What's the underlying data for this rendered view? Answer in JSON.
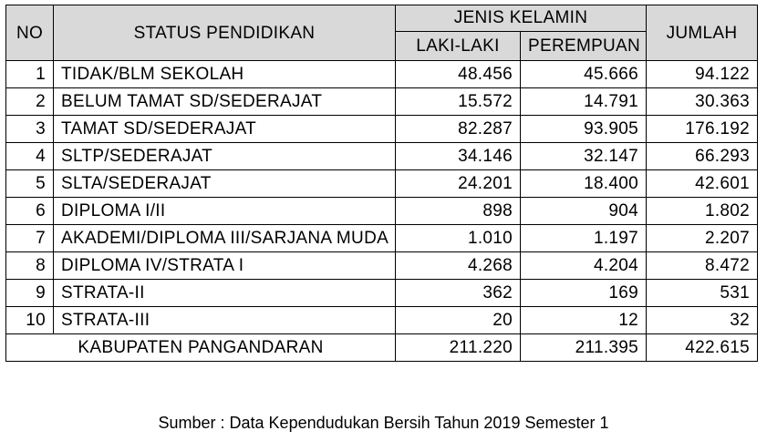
{
  "table": {
    "headers": {
      "no": "NO",
      "status": "STATUS PENDIDIKAN",
      "gender_group": "JENIS KELAMIN",
      "male": "LAKI-LAKI",
      "female": "PEREMPUAN",
      "total": "JUMLAH"
    },
    "rows": [
      {
        "no": "1",
        "status": "TIDAK/BLM SEKOLAH",
        "male": "48.456",
        "female": "45.666",
        "total": "94.122"
      },
      {
        "no": "2",
        "status": "BELUM TAMAT SD/SEDERAJAT",
        "male": "15.572",
        "female": "14.791",
        "total": "30.363"
      },
      {
        "no": "3",
        "status": "TAMAT SD/SEDERAJAT",
        "male": "82.287",
        "female": "93.905",
        "total": "176.192"
      },
      {
        "no": "4",
        "status": "SLTP/SEDERAJAT",
        "male": "34.146",
        "female": "32.147",
        "total": "66.293"
      },
      {
        "no": "5",
        "status": "SLTA/SEDERAJAT",
        "male": "24.201",
        "female": "18.400",
        "total": "42.601"
      },
      {
        "no": "6",
        "status": "DIPLOMA I/II",
        "male": "898",
        "female": "904",
        "total": "1.802"
      },
      {
        "no": "7",
        "status": "AKADEMI/DIPLOMA III/SARJANA MUDA",
        "male": "1.010",
        "female": "1.197",
        "total": "2.207"
      },
      {
        "no": "8",
        "status": "DIPLOMA IV/STRATA I",
        "male": "4.268",
        "female": "4.204",
        "total": "8.472"
      },
      {
        "no": "9",
        "status": "STRATA-II",
        "male": "362",
        "female": "169",
        "total": "531"
      },
      {
        "no": "10",
        "status": "STRATA-III",
        "male": "20",
        "female": "12",
        "total": "32"
      }
    ],
    "totals": {
      "label": "KABUPATEN PANGANDARAN",
      "male": "211.220",
      "female": "211.395",
      "total": "422.615"
    }
  },
  "source": "Sumber : Data Kependudukan Bersih Tahun 2019 Semester 1"
}
